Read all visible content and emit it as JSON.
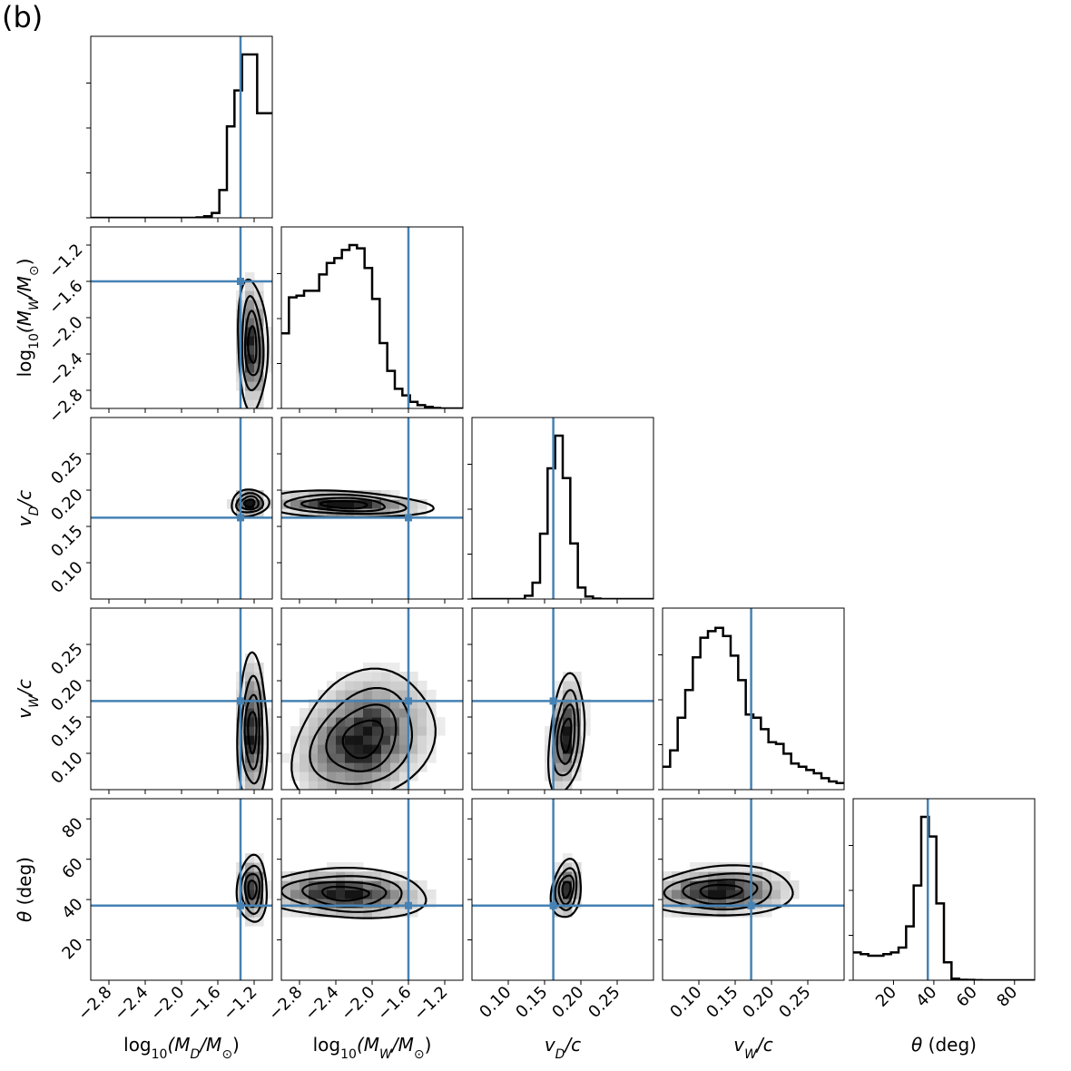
{
  "panel_label": "(b)",
  "chart_data": {
    "type": "corner",
    "truth_color": "#4682b4",
    "params": [
      {
        "key": "logMD",
        "xlabel_parts": [
          [
            "log",
            ""
          ],
          [
            "10",
            "sub"
          ],
          [
            "(M",
            "i"
          ],
          [
            "D",
            "isub"
          ],
          [
            "/M",
            "i"
          ],
          [
            "⊙",
            "sub"
          ],
          [
            ")",
            ""
          ]
        ],
        "ylabel_parts": [],
        "range": [
          -3.0,
          -1.0
        ],
        "ticks": [
          -2.8,
          -2.4,
          -2.0,
          -1.6,
          -1.2
        ],
        "tick_labels": [
          "−2.8",
          "−2.4",
          "−2.0",
          "−1.6",
          "−1.2"
        ],
        "truth": -1.35,
        "hist": [
          0,
          0,
          0,
          0,
          0,
          0,
          0,
          0,
          0,
          0,
          0,
          0,
          0,
          0,
          0.003,
          0.01,
          0.03,
          0.17,
          0.56,
          0.78,
          1.0,
          1.0,
          0.64,
          0.64
        ]
      },
      {
        "key": "logMW",
        "xlabel_parts": [
          [
            "log",
            ""
          ],
          [
            "10",
            "sub"
          ],
          [
            "(M",
            "i"
          ],
          [
            "W",
            "isub"
          ],
          [
            "/M",
            "i"
          ],
          [
            "⊙",
            "sub"
          ],
          [
            ")",
            ""
          ]
        ],
        "ylabel_parts": [
          [
            "log",
            ""
          ],
          [
            "10",
            "sub"
          ],
          [
            "(M",
            "i"
          ],
          [
            "W",
            "isub"
          ],
          [
            "/M",
            "i"
          ],
          [
            "⊙",
            "sub"
          ],
          [
            ")",
            ""
          ]
        ],
        "range": [
          -3.0,
          -1.0
        ],
        "ticks": [
          -2.8,
          -2.4,
          -2.0,
          -1.6,
          -1.2
        ],
        "tick_labels": [
          "−2.8",
          "−2.4",
          "−2.0",
          "−1.6",
          "−1.2"
        ],
        "truth": -1.6,
        "hist": [
          0.46,
          0.68,
          0.69,
          0.72,
          0.72,
          0.82,
          0.89,
          0.92,
          0.97,
          1.0,
          0.98,
          0.86,
          0.67,
          0.4,
          0.23,
          0.12,
          0.08,
          0.04,
          0.02,
          0.01,
          0.003,
          0,
          0,
          0
        ]
      },
      {
        "key": "vD",
        "xlabel_parts": [
          [
            "v",
            "i"
          ],
          [
            "D",
            "isub"
          ],
          [
            "/c",
            "i"
          ]
        ],
        "ylabel_parts": [
          [
            "v",
            "i"
          ],
          [
            "D",
            "isub"
          ],
          [
            "/c",
            "i"
          ]
        ],
        "range": [
          0.05,
          0.3
        ],
        "ticks": [
          0.1,
          0.15,
          0.2,
          0.25
        ],
        "tick_labels": [
          "0.10",
          "0.15",
          "0.20",
          "0.25"
        ],
        "truth": 0.162,
        "hist": [
          0,
          0,
          0,
          0,
          0,
          0,
          0,
          0.02,
          0.1,
          0.4,
          0.8,
          1.0,
          0.74,
          0.34,
          0.07,
          0.015,
          0.003,
          0,
          0,
          0,
          0,
          0,
          0,
          0
        ]
      },
      {
        "key": "vW",
        "xlabel_parts": [
          [
            "v",
            "i"
          ],
          [
            "W",
            "isub"
          ],
          [
            "/c",
            "i"
          ]
        ],
        "ylabel_parts": [
          [
            "v",
            "i"
          ],
          [
            "W",
            "isub"
          ],
          [
            "/c",
            "i"
          ]
        ],
        "range": [
          0.05,
          0.3
        ],
        "ticks": [
          0.1,
          0.15,
          0.2,
          0.25
        ],
        "tick_labels": [
          "0.10",
          "0.15",
          "0.20",
          "0.25"
        ],
        "truth": 0.172,
        "hist": [
          0.14,
          0.24,
          0.44,
          0.61,
          0.81,
          0.93,
          0.97,
          0.99,
          0.94,
          0.82,
          0.67,
          0.46,
          0.44,
          0.37,
          0.29,
          0.28,
          0.22,
          0.16,
          0.14,
          0.12,
          0.1,
          0.07,
          0.05,
          0.04
        ]
      },
      {
        "key": "theta",
        "xlabel_parts": [
          [
            "θ",
            "i"
          ],
          [
            " (deg)",
            ""
          ]
        ],
        "ylabel_parts": [
          [
            "θ",
            "i"
          ],
          [
            " (deg)",
            ""
          ]
        ],
        "range": [
          0,
          90
        ],
        "ticks": [
          20,
          40,
          60,
          80
        ],
        "tick_labels": [
          "20",
          "40",
          "60",
          "80"
        ],
        "truth": 37,
        "hist": [
          0.17,
          0.16,
          0.15,
          0.15,
          0.16,
          0.17,
          0.2,
          0.33,
          0.58,
          1.0,
          0.88,
          0.47,
          0.11,
          0.01,
          0.003,
          0.002,
          0.001,
          0,
          0,
          0,
          0,
          0,
          0,
          0
        ]
      }
    ],
    "joint": {
      "1-0": {
        "mean": [
          -1.22,
          -2.3
        ],
        "sd": [
          0.08,
          0.35
        ],
        "rho": -0.1
      },
      "2-0": {
        "mean": [
          -1.25,
          0.182
        ],
        "sd": [
          0.1,
          0.009
        ],
        "rho": 0.1
      },
      "2-1": {
        "mean": [
          -2.3,
          0.18
        ],
        "sd": [
          0.45,
          0.009
        ],
        "rho": -0.2
      },
      "3-0": {
        "mean": [
          -1.22,
          0.13
        ],
        "sd": [
          0.08,
          0.05
        ],
        "rho": 0.0
      },
      "3-1": {
        "mean": [
          -2.1,
          0.12
        ],
        "sd": [
          0.38,
          0.045
        ],
        "rho": 0.25
      },
      "3-2": {
        "mean": [
          0.18,
          0.125
        ],
        "sd": [
          0.012,
          0.04
        ],
        "rho": 0.3
      },
      "4-0": {
        "mean": [
          -1.22,
          45
        ],
        "sd": [
          0.08,
          8
        ],
        "rho": 0.0
      },
      "4-1": {
        "mean": [
          -2.3,
          43
        ],
        "sd": [
          0.45,
          6
        ],
        "rho": -0.1
      },
      "4-2": {
        "mean": [
          0.18,
          45
        ],
        "sd": [
          0.01,
          7
        ],
        "rho": 0.2
      },
      "4-3": {
        "mean": [
          0.13,
          44
        ],
        "sd": [
          0.05,
          6
        ],
        "rho": 0.1
      }
    },
    "contour_levels": [
      0.12,
      0.34,
      0.6,
      0.85
    ]
  }
}
